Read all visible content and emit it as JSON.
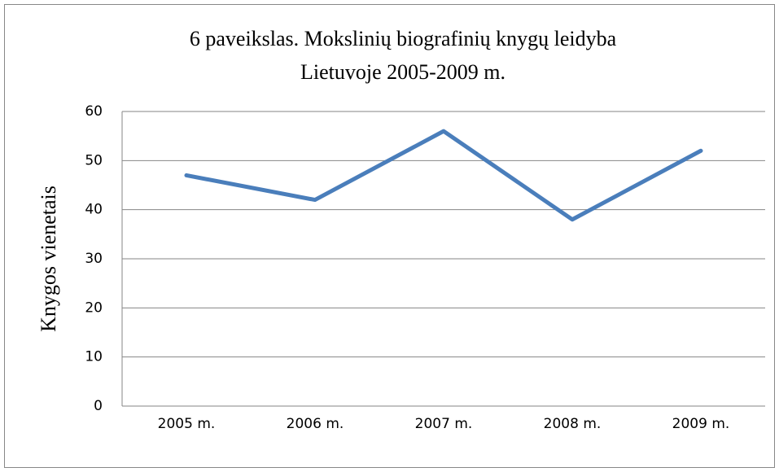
{
  "chart_data": {
    "type": "line",
    "title": [
      "6 paveikslas.  Mokslinių biografinių knygų leidyba",
      "Lietuvoje 2005-2009 m."
    ],
    "y_label": "Knygos vienetais",
    "categories": [
      "2005 m.",
      "2006 m.",
      "2007 m.",
      "2008 m.",
      "2009 m."
    ],
    "values": [
      47,
      42,
      56,
      38,
      52
    ],
    "color": "#4a7ebb",
    "ylim": [
      0,
      60
    ],
    "yticks": [
      0,
      10,
      20,
      30,
      40,
      50,
      60
    ],
    "grid": true
  }
}
